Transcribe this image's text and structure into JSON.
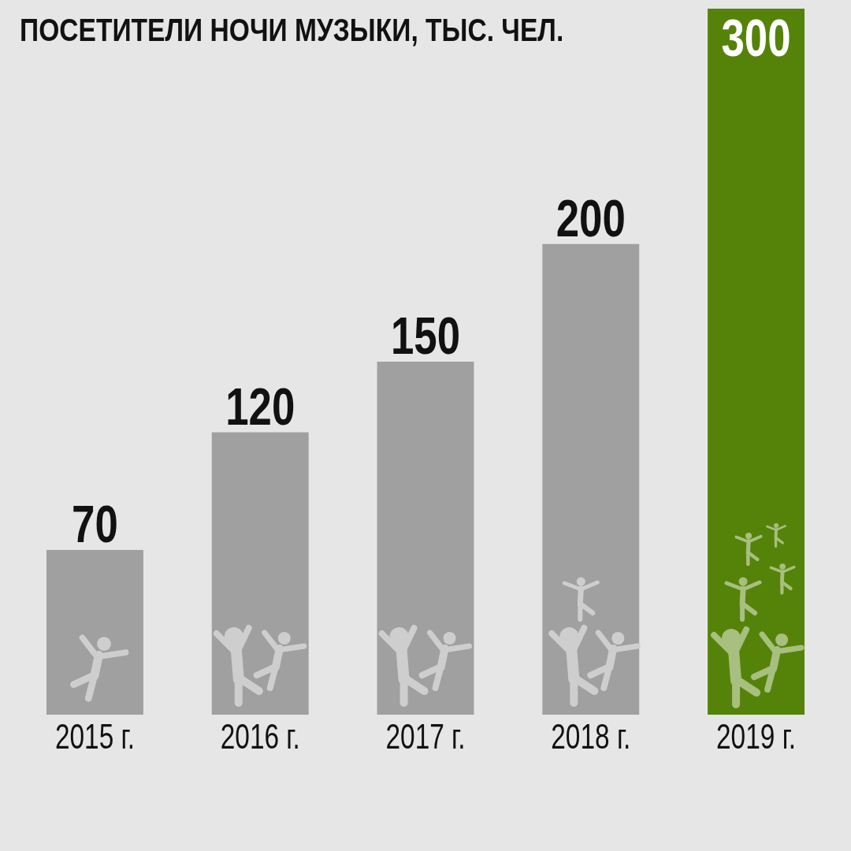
{
  "chart_data": {
    "type": "bar",
    "title": "ПОСЕТИТЕЛИ НОЧИ МУЗЫКИ, ТЫС. ЧЕЛ.",
    "categories": [
      "2015 г.",
      "2016 г.",
      "2017 г.",
      "2018 г.",
      "2019 г."
    ],
    "values": [
      70,
      120,
      150,
      200,
      300
    ],
    "colors": [
      "#a0a0a0",
      "#a0a0a0",
      "#a0a0a0",
      "#a0a0a0",
      "#558309"
    ],
    "data_labels": true,
    "tick_labels": "x"
  }
}
